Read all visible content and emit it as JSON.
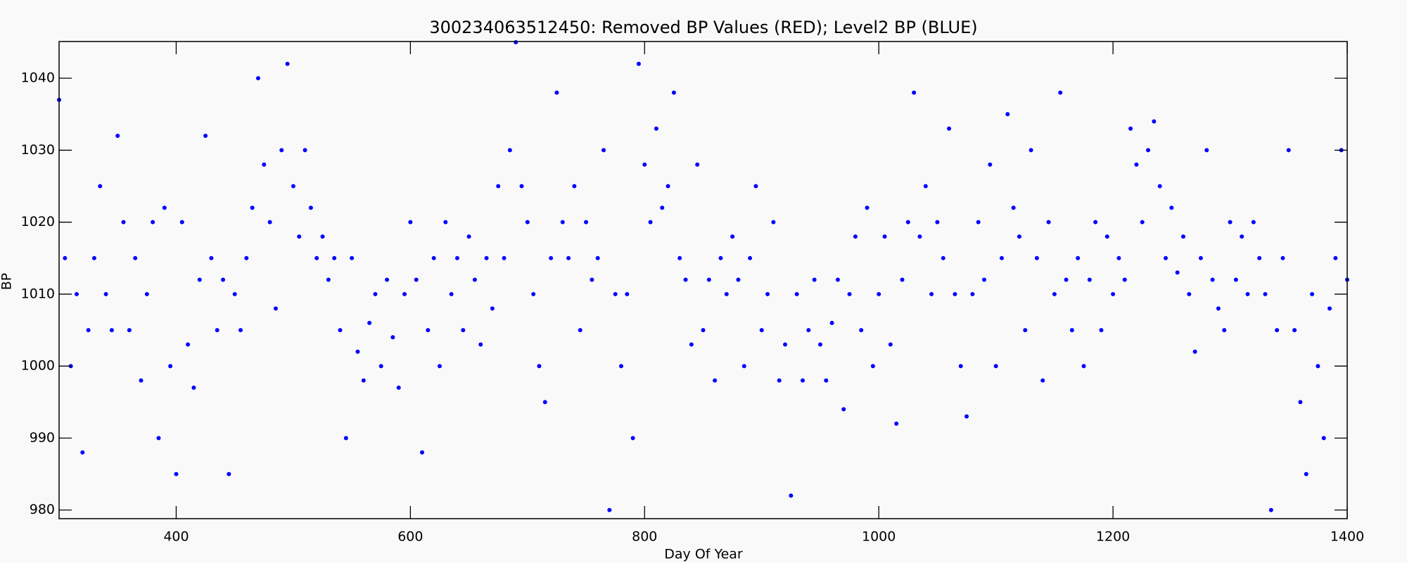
{
  "chart_data": {
    "type": "scatter",
    "title": "300234063512450: Removed BP Values (RED); Level2 BP (BLUE)",
    "xlabel": "Day Of Year",
    "ylabel": "BP",
    "xlim": [
      300,
      1400
    ],
    "ylim": [
      978.8,
      1045.1
    ],
    "xticks": [
      400,
      600,
      800,
      1000,
      1200,
      1400
    ],
    "yticks": [
      980,
      990,
      1000,
      1010,
      1020,
      1030,
      1040
    ],
    "grid": false,
    "series": [
      {
        "name": "Level2 BP",
        "color": "#0000ff",
        "x": [
          300,
          305,
          310,
          315,
          320,
          325,
          330,
          335,
          340,
          345,
          350,
          355,
          360,
          365,
          370,
          375,
          380,
          385,
          390,
          395,
          400,
          405,
          410,
          415,
          420,
          425,
          430,
          435,
          440,
          445,
          450,
          455,
          460,
          465,
          470,
          475,
          480,
          485,
          490,
          495,
          500,
          505,
          510,
          515,
          520,
          525,
          530,
          535,
          540,
          545,
          550,
          555,
          560,
          565,
          570,
          575,
          580,
          585,
          590,
          595,
          600,
          605,
          610,
          615,
          620,
          625,
          630,
          635,
          640,
          645,
          650,
          655,
          660,
          665,
          670,
          675,
          680,
          685,
          690,
          695,
          700,
          705,
          710,
          715,
          720,
          725,
          730,
          735,
          740,
          745,
          750,
          755,
          760,
          765,
          770,
          775,
          780,
          785,
          790,
          795,
          800,
          805,
          810,
          815,
          820,
          825,
          830,
          835,
          840,
          845,
          850,
          855,
          860,
          865,
          870,
          875,
          880,
          885,
          890,
          895,
          900,
          905,
          910,
          915,
          920,
          925,
          930,
          935,
          940,
          945,
          950,
          955,
          960,
          965,
          970,
          975,
          980,
          985,
          990,
          995,
          1000,
          1005,
          1010,
          1015,
          1020,
          1025,
          1030,
          1035,
          1040,
          1045,
          1050,
          1055,
          1060,
          1065,
          1070,
          1075,
          1080,
          1085,
          1090,
          1095,
          1100,
          1105,
          1110,
          1115,
          1120,
          1125,
          1130,
          1135,
          1140,
          1145,
          1150,
          1155,
          1160,
          1165,
          1170,
          1175,
          1180,
          1185,
          1190,
          1195,
          1200,
          1205,
          1210,
          1215,
          1220,
          1225,
          1230,
          1235,
          1240,
          1245,
          1250,
          1255,
          1260,
          1265,
          1270,
          1275,
          1280,
          1285,
          1290,
          1295,
          1300,
          1305,
          1310,
          1315,
          1320,
          1325,
          1330,
          1335,
          1340,
          1345,
          1350,
          1355,
          1360,
          1365,
          1370,
          1375,
          1380,
          1385,
          1390,
          1395,
          1400
        ],
        "values": [
          1037,
          1015,
          1000,
          1010,
          988,
          1005,
          1015,
          1025,
          1010,
          1005,
          1032,
          1020,
          1005,
          1015,
          998,
          1010,
          1020,
          990,
          1022,
          1000,
          985,
          1020,
          1003,
          997,
          1012,
          1032,
          1015,
          1005,
          1012,
          985,
          1010,
          1005,
          1015,
          1022,
          1040,
          1028,
          1020,
          1008,
          1030,
          1042,
          1025,
          1018,
          1030,
          1022,
          1015,
          1018,
          1012,
          1015,
          1005,
          990,
          1015,
          1002,
          998,
          1006,
          1010,
          1000,
          1012,
          1004,
          997,
          1010,
          1020,
          1012,
          988,
          1005,
          1015,
          1000,
          1020,
          1010,
          1015,
          1005,
          1018,
          1012,
          1003,
          1015,
          1008,
          1025,
          1015,
          1030,
          1045,
          1025,
          1020,
          1010,
          1000,
          995,
          1015,
          1038,
          1020,
          1015,
          1025,
          1005,
          1020,
          1012,
          1015,
          1030,
          980,
          1010,
          1000,
          1010,
          990,
          1042,
          1028,
          1020,
          1033,
          1022,
          1025,
          1038,
          1015,
          1012,
          1003,
          1028,
          1005,
          1012,
          998,
          1015,
          1010,
          1018,
          1012,
          1000,
          1015,
          1025,
          1005,
          1010,
          1020,
          998,
          1003,
          982,
          1010,
          998,
          1005,
          1012,
          1003,
          998,
          1006,
          1012,
          994,
          1010,
          1018,
          1005,
          1022,
          1000,
          1010,
          1018,
          1003,
          992,
          1012,
          1020,
          1038,
          1018,
          1025,
          1010,
          1020,
          1015,
          1033,
          1010,
          1000,
          993,
          1010,
          1020,
          1012,
          1028,
          1000,
          1015,
          1035,
          1022,
          1018,
          1005,
          1030,
          1015,
          998,
          1020,
          1010,
          1038,
          1012,
          1005,
          1015,
          1000,
          1012,
          1020,
          1005,
          1018,
          1010,
          1015,
          1012,
          1033,
          1028,
          1020,
          1030,
          1034,
          1025,
          1015,
          1022,
          1013,
          1018,
          1010,
          1002,
          1015,
          1030,
          1012,
          1008,
          1005,
          1020,
          1012,
          1018,
          1010,
          1020,
          1015,
          1010,
          980,
          1005,
          1015,
          1030,
          1005,
          995,
          985,
          1010,
          1000,
          990,
          1008,
          1015,
          1030,
          1012
        ]
      }
    ]
  }
}
